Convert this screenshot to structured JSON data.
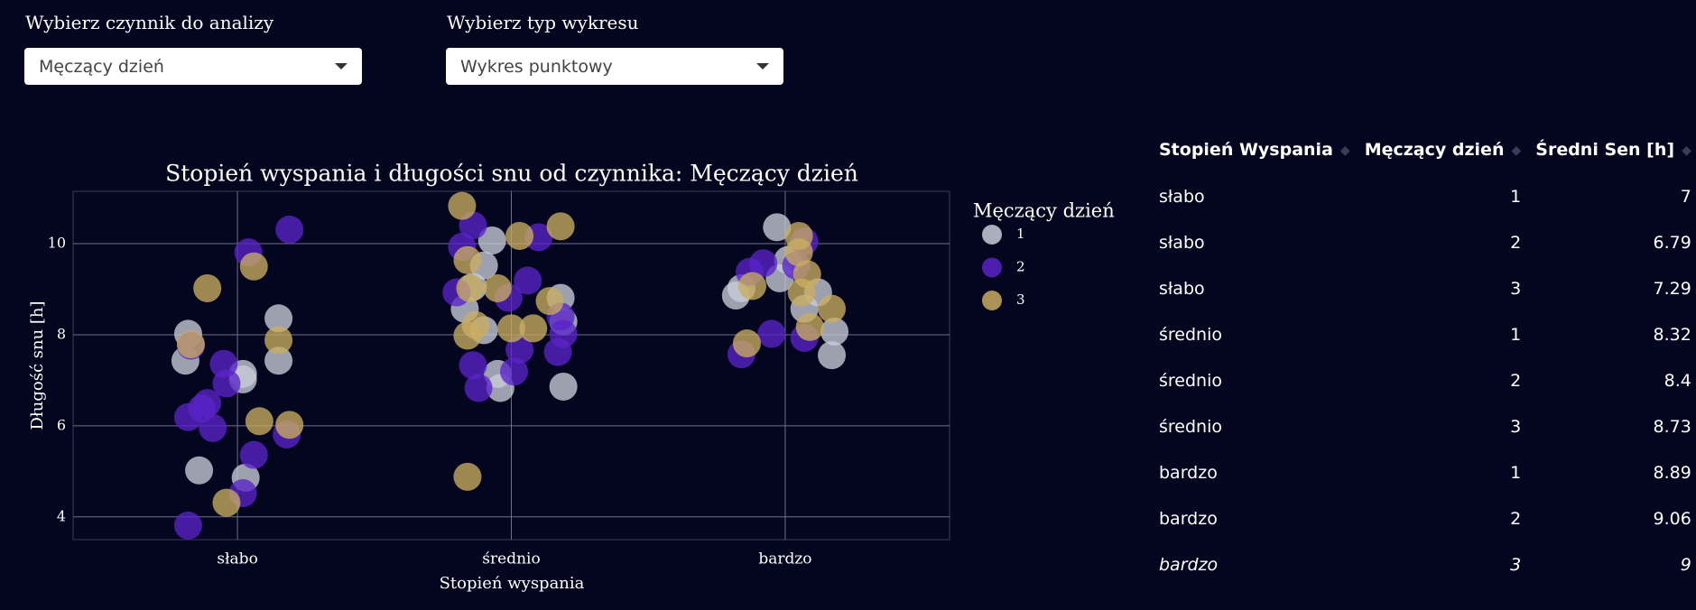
{
  "controls": [
    {
      "label": "Wybierz czynnik do analizy",
      "value": "Męczący dzień"
    },
    {
      "label": "Wybierz typ wykresu",
      "value": "Wykres punktowy"
    }
  ],
  "chart_data": {
    "type": "scatter",
    "title": "Stopień wyspania i długości snu od czynnika:  Męczący dzień",
    "x_label": "Stopień wyspania",
    "y_label": "Długość snu [h]",
    "legend_title": "Męczący dzień",
    "xlim": [
      -0.6,
      2.6
    ],
    "xticks": [
      {
        "value": 0,
        "label": "słabo"
      },
      {
        "value": 1,
        "label": "średnio"
      },
      {
        "value": 2,
        "label": "bardzo"
      }
    ],
    "ylim": [
      3.5,
      11.15
    ],
    "yticks": [
      4,
      6,
      8,
      10
    ],
    "grid": true,
    "series": [
      {
        "name": "1",
        "color": "#c9cdd8",
        "x": [
          -0.18,
          -0.19,
          -0.14,
          0.03,
          0.02,
          0.15,
          0.15,
          0.02,
          0.93,
          0.9,
          0.86,
          0.83,
          0.95,
          0.96,
          1.18,
          1.19,
          1.19,
          0.9,
          1.97,
          1.82,
          1.84,
          1.98,
          2.12,
          2.07,
          2.18,
          2.17,
          2.01
        ],
        "y": [
          8.02,
          7.43,
          5.02,
          4.86,
          7.14,
          8.36,
          7.43,
          7.02,
          10.07,
          9.52,
          9.05,
          8.57,
          7.14,
          6.83,
          8.81,
          8.29,
          6.86,
          8.1,
          10.36,
          8.86,
          9.02,
          9.24,
          8.93,
          8.57,
          8.07,
          7.55,
          9.64
        ]
      },
      {
        "name": "2",
        "color": "#5a22c8",
        "x": [
          0.19,
          0.04,
          -0.17,
          -0.05,
          -0.04,
          -0.11,
          -0.13,
          -0.18,
          -0.09,
          0.06,
          0.18,
          0.02,
          -0.18,
          0.82,
          0.86,
          1.1,
          1.06,
          0.8,
          0.99,
          0.86,
          0.88,
          1.01,
          1.03,
          1.17,
          1.19,
          1.18,
          1.87,
          1.92,
          2.07,
          1.84,
          1.95,
          2.07,
          2.04
        ],
        "y": [
          10.31,
          9.81,
          7.76,
          7.36,
          6.93,
          6.5,
          6.38,
          6.19,
          5.95,
          5.36,
          5.81,
          4.52,
          3.81,
          9.93,
          10.4,
          10.14,
          9.19,
          8.93,
          8.81,
          7.33,
          6.83,
          7.19,
          7.67,
          7.62,
          8.02,
          8.4,
          9.38,
          9.57,
          10.05,
          7.57,
          8.02,
          7.93,
          9.52
        ]
      },
      {
        "name": "3",
        "color": "#c9ad62",
        "x": [
          -0.11,
          0.06,
          0.15,
          -0.17,
          0.08,
          0.19,
          -0.04,
          0.82,
          0.84,
          0.85,
          0.95,
          1.03,
          1.18,
          0.84,
          0.87,
          1.0,
          1.08,
          1.14,
          0.84,
          2.05,
          2.05,
          2.08,
          2.06,
          2.17,
          2.09,
          1.86,
          1.88
        ],
        "y": [
          9.02,
          9.5,
          7.88,
          7.79,
          6.1,
          6.02,
          4.31,
          10.83,
          9.64,
          9.02,
          9.02,
          10.17,
          10.38,
          7.98,
          8.21,
          8.14,
          8.14,
          8.74,
          4.88,
          10.17,
          9.81,
          9.33,
          8.93,
          8.57,
          8.17,
          7.81,
          9.07
        ]
      }
    ]
  },
  "table": {
    "columns": [
      "Stopień Wyspania",
      "Męczący dzień",
      "Średni Sen [h]"
    ],
    "rows": [
      [
        "słabo",
        1,
        7
      ],
      [
        "słabo",
        2,
        6.79
      ],
      [
        "słabo",
        3,
        7.29
      ],
      [
        "średnio",
        1,
        8.32
      ],
      [
        "średnio",
        2,
        8.4
      ],
      [
        "średnio",
        3,
        8.73
      ],
      [
        "bardzo",
        1,
        8.89
      ],
      [
        "bardzo",
        2,
        9.06
      ],
      [
        "bardzo",
        3,
        9
      ]
    ]
  }
}
